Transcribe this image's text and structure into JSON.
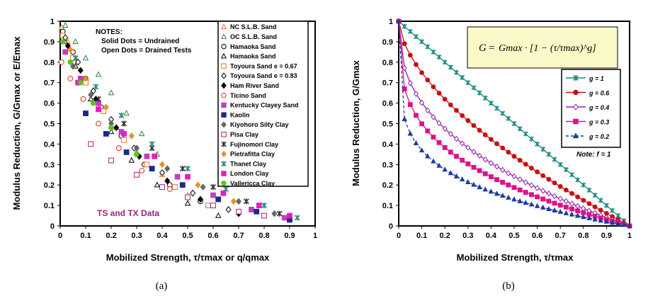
{
  "chart_data": [
    {
      "type": "scatter",
      "panel_caption": "(a)",
      "xlabel": "Mobilized Strength, τ/τmax or q/qmax",
      "ylabel": "Modulus Reduction, G/Gmax or E/Emax",
      "xlim": [
        0,
        1
      ],
      "ylim": [
        0,
        1
      ],
      "xticks": [
        "0",
        "0.1",
        "0.2",
        "0.3",
        "0.4",
        "0.5",
        "0.6",
        "0.7",
        "0.8",
        "0.9",
        "1"
      ],
      "yticks": [
        "0",
        "0.1",
        "0.2",
        "0.3",
        "0.4",
        "0.5",
        "0.6",
        "0.7",
        "0.8",
        "0.9",
        "1"
      ],
      "notes": [
        "NOTES:",
        "Solid Dots = Undrained",
        "Open Dots = Drained Tests"
      ],
      "annotation": "TS and TX Data",
      "legend_position": "right",
      "series": [
        {
          "name": "NC S.L.B. Sand",
          "marker": "triangle",
          "filled": false,
          "color": "#e8703a",
          "x": [
            0.005,
            0.03,
            0.06,
            0.1,
            0.15,
            0.22,
            0.3,
            0.4,
            0.5
          ],
          "y": [
            0.97,
            0.9,
            0.82,
            0.72,
            0.6,
            0.48,
            0.36,
            0.25,
            0.15
          ]
        },
        {
          "name": "OC S.L.B. Sand",
          "marker": "triangle",
          "filled": false,
          "color": "#2a8a3a",
          "x": [
            0.02,
            0.06,
            0.1,
            0.15,
            0.2,
            0.26,
            0.32,
            0.38
          ],
          "y": [
            0.98,
            0.9,
            0.82,
            0.74,
            0.65,
            0.55,
            0.45,
            0.35
          ]
        },
        {
          "name": "Hamaoka Sand",
          "marker": "circle",
          "filled": false,
          "color": "#000000",
          "x": [
            0.01,
            0.05,
            0.1,
            0.16,
            0.24,
            0.33,
            0.43,
            0.55
          ],
          "y": [
            0.95,
            0.85,
            0.72,
            0.58,
            0.44,
            0.3,
            0.2,
            0.12
          ]
        },
        {
          "name": "Hamaoka Sand",
          "marker": "triangle",
          "filled": false,
          "color": "#000000",
          "x": [
            0.02,
            0.06,
            0.12,
            0.2,
            0.28,
            0.38,
            0.5,
            0.62
          ],
          "y": [
            0.9,
            0.78,
            0.62,
            0.46,
            0.32,
            0.2,
            0.11,
            0.05
          ]
        },
        {
          "name": "Toyoura Sand e = 0.67",
          "marker": "square",
          "filled": false,
          "color": "#e8703a",
          "x": [
            0.01,
            0.05,
            0.1,
            0.17,
            0.25,
            0.34,
            0.45,
            0.58
          ],
          "y": [
            0.93,
            0.82,
            0.7,
            0.56,
            0.42,
            0.3,
            0.19,
            0.1
          ]
        },
        {
          "name": "Toyoura Sand e = 0.83",
          "marker": "diamond",
          "filled": false,
          "color": "#000000",
          "x": [
            0.02,
            0.07,
            0.13,
            0.2,
            0.29,
            0.4,
            0.52,
            0.66
          ],
          "y": [
            0.92,
            0.8,
            0.66,
            0.52,
            0.38,
            0.26,
            0.16,
            0.08
          ]
        },
        {
          "name": "Ham River Sand",
          "marker": "diamond",
          "filled": true,
          "color": "#000000",
          "x": [
            0.03,
            0.08,
            0.14,
            0.22,
            0.31,
            0.42,
            0.55,
            0.7
          ],
          "y": [
            0.88,
            0.76,
            0.62,
            0.48,
            0.34,
            0.22,
            0.13,
            0.06
          ]
        },
        {
          "name": "Ticino Sand",
          "marker": "circle",
          "filled": false,
          "color": "#e03020",
          "x": [
            0.005,
            0.04,
            0.09,
            0.15,
            0.23,
            0.32,
            0.43
          ],
          "y": [
            0.8,
            0.72,
            0.62,
            0.5,
            0.38,
            0.27,
            0.18
          ]
        },
        {
          "name": "Kentucky Clayey Sand",
          "marker": "square",
          "filled": true,
          "color": "#c040c0",
          "x": [
            0.02,
            0.08,
            0.15,
            0.24,
            0.34,
            0.46,
            0.6,
            0.75,
            0.88
          ],
          "y": [
            0.85,
            0.72,
            0.6,
            0.46,
            0.34,
            0.24,
            0.15,
            0.08,
            0.04
          ]
        },
        {
          "name": "Kaolin",
          "marker": "square",
          "filled": true,
          "color": "#1a2a8a",
          "x": [
            0.1,
            0.18,
            0.26,
            0.36,
            0.48,
            0.62,
            0.77,
            0.9
          ],
          "y": [
            0.55,
            0.45,
            0.36,
            0.28,
            0.2,
            0.13,
            0.07,
            0.03
          ]
        },
        {
          "name": "Kiyohoro Silty Clay",
          "marker": "diamond",
          "filled": true,
          "color": "#666666",
          "x": [
            0.05,
            0.12,
            0.2,
            0.3,
            0.42,
            0.56,
            0.7,
            0.84
          ],
          "y": [
            0.78,
            0.64,
            0.5,
            0.38,
            0.28,
            0.19,
            0.12,
            0.06
          ]
        },
        {
          "name": "Pisa Clay",
          "marker": "square",
          "filled": false,
          "color": "#a02080",
          "x": [
            0.12,
            0.2,
            0.3,
            0.4,
            0.5,
            0.6,
            0.7,
            0.8
          ],
          "y": [
            0.4,
            0.32,
            0.25,
            0.19,
            0.14,
            0.1,
            0.07,
            0.05
          ]
        },
        {
          "name": "Fujinomori Clay",
          "marker": "star",
          "filled": true,
          "color": "#333333",
          "x": [
            0.15,
            0.25,
            0.36,
            0.48,
            0.6,
            0.73,
            0.86
          ],
          "y": [
            0.62,
            0.5,
            0.38,
            0.28,
            0.19,
            0.12,
            0.06
          ]
        },
        {
          "name": "Pietrafitta Clay",
          "marker": "diamond",
          "filled": true,
          "color": "#e8902a",
          "x": [
            0.04,
            0.1,
            0.18,
            0.28,
            0.4,
            0.54,
            0.68
          ],
          "y": [
            0.86,
            0.72,
            0.58,
            0.44,
            0.3,
            0.2,
            0.12
          ]
        },
        {
          "name": "Thanet Clay",
          "marker": "x",
          "filled": true,
          "color": "#2a8a7a",
          "x": [
            0.06,
            0.14,
            0.24,
            0.36,
            0.5,
            0.65,
            0.8,
            0.93
          ],
          "y": [
            0.82,
            0.68,
            0.54,
            0.4,
            0.28,
            0.18,
            0.1,
            0.04
          ]
        },
        {
          "name": "London Clay",
          "marker": "square",
          "filled": true,
          "color": "#e020c0",
          "x": [
            0.07,
            0.15,
            0.25,
            0.37,
            0.5,
            0.64,
            0.78,
            0.9
          ],
          "y": [
            0.7,
            0.57,
            0.45,
            0.34,
            0.24,
            0.16,
            0.1,
            0.05
          ]
        },
        {
          "name": "Vallericca Clay",
          "marker": "circle",
          "filled": true,
          "color": "#60c020",
          "x": [
            0.01,
            0.04,
            0.08,
            0.13,
            0.2,
            0.3
          ],
          "y": [
            0.9,
            0.8,
            0.7,
            0.6,
            0.48,
            0.35
          ]
        }
      ]
    },
    {
      "type": "line",
      "panel_caption": "(b)",
      "xlabel": "Mobilized Strength, τ/τmax",
      "ylabel": "Modulus Reduction, G/Gmax",
      "xlim": [
        0,
        1
      ],
      "ylim": [
        0,
        1
      ],
      "xticks": [
        "0",
        "0.1",
        "0.2",
        "0.3",
        "0.4",
        "0.5",
        "0.6",
        "0.7",
        "0.8",
        "0.9",
        "1"
      ],
      "yticks": [
        "0",
        "0.1",
        "0.2",
        "0.3",
        "0.4",
        "0.5",
        "0.6",
        "0.7",
        "0.8",
        "0.9",
        "1"
      ],
      "equation": {
        "lhs": "G",
        "rhs": "Gmax · [1 − (τ/τmax)^g]"
      },
      "note": "Note: f = 1",
      "legend_position": "top-right",
      "x": [
        0,
        0.025,
        0.05,
        0.075,
        0.1,
        0.125,
        0.15,
        0.175,
        0.2,
        0.225,
        0.25,
        0.275,
        0.3,
        0.325,
        0.35,
        0.375,
        0.4,
        0.425,
        0.45,
        0.475,
        0.5,
        0.525,
        0.55,
        0.575,
        0.6,
        0.625,
        0.65,
        0.675,
        0.7,
        0.725,
        0.75,
        0.775,
        0.8,
        0.825,
        0.85,
        0.875,
        0.9,
        0.925,
        0.95,
        0.975,
        1
      ],
      "series": [
        {
          "name": "g = 1",
          "exponent": 1,
          "color": "#1a8a80",
          "marker": "x",
          "filled": true,
          "dashed": false
        },
        {
          "name": "g = 0.6",
          "exponent": 0.6,
          "color": "#c81010",
          "marker": "circle",
          "filled": true,
          "dashed": false
        },
        {
          "name": "g = 0.4",
          "exponent": 0.4,
          "color": "#9020b0",
          "marker": "diamond",
          "filled": false,
          "dashed": false
        },
        {
          "name": "g = 0.3",
          "exponent": 0.3,
          "color": "#e0108a",
          "marker": "square",
          "filled": true,
          "dashed": false
        },
        {
          "name": "g = 0.2",
          "exponent": 0.2,
          "color": "#1a3aa0",
          "marker": "triangle",
          "filled": true,
          "dashed": true
        }
      ]
    }
  ]
}
